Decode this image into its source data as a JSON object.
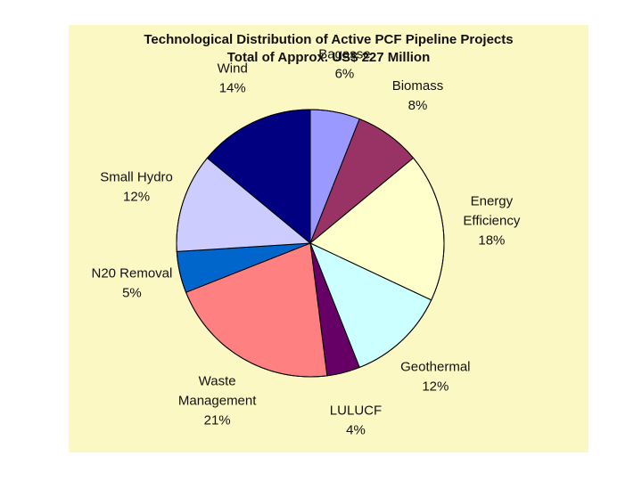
{
  "chart_data": {
    "type": "pie",
    "title": "Technological Distribution of Active PCF Pipeline Projects",
    "subtitle": "Total of Approx. US$ 227 Million",
    "start_angle_deg": 0,
    "direction": "clockwise",
    "slices": [
      {
        "label": "Bagasse",
        "value": 6,
        "display": "6%",
        "color": "#9999ff"
      },
      {
        "label": "Biomass",
        "value": 8,
        "display": "8%",
        "color": "#993366"
      },
      {
        "label": "Energy Efficiency",
        "lines": [
          "Energy",
          "Efficiency"
        ],
        "value": 18,
        "display": "18%",
        "color": "#ffffcc"
      },
      {
        "label": "Geothermal",
        "value": 12,
        "display": "12%",
        "color": "#ccffff"
      },
      {
        "label": "LULUCF",
        "value": 4,
        "display": "4%",
        "color": "#660066"
      },
      {
        "label": "Waste Management",
        "lines": [
          "Waste",
          "Management"
        ],
        "value": 21,
        "display": "21%",
        "color": "#ff8080"
      },
      {
        "label": "N20 Removal",
        "value": 5,
        "display": "5%",
        "color": "#0066cc"
      },
      {
        "label": "Small Hydro",
        "value": 12,
        "display": "12%",
        "color": "#ccccff"
      },
      {
        "label": "Wind",
        "value": 14,
        "display": "14%",
        "color": "#000080"
      }
    ]
  }
}
